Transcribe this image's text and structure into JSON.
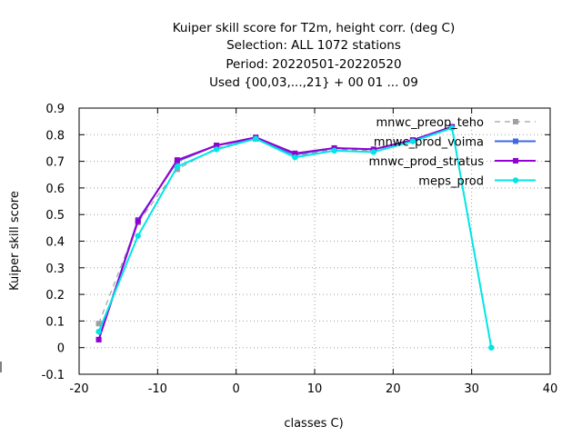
{
  "chart_data": {
    "type": "line",
    "title_lines": [
      "Kuiper skill score  for T2m, height corr. (deg C)",
      "Selection: ALL    1072 stations",
      "Period: 20220501-20220520",
      "Used {00,03,...,21} + 00 01 ... 09"
    ],
    "xlabel": "classes C)",
    "ylabel": "Kuiper skill score",
    "xlim": [
      -20,
      40
    ],
    "ylim": [
      -0.1,
      0.9
    ],
    "x_ticks": [
      -20,
      -10,
      0,
      10,
      20,
      30,
      40
    ],
    "x_tick_labels": [
      "-20",
      "-10",
      "0",
      "10",
      "20",
      "30",
      "40"
    ],
    "y_ticks": [
      -0.1,
      0,
      0.1,
      0.2,
      0.3,
      0.4,
      0.5,
      0.6,
      0.7,
      0.8,
      0.9
    ],
    "y_tick_labels": [
      "-0.1",
      "0",
      "0.1",
      "0.2",
      "0.3",
      "0.4",
      "0.5",
      "0.6",
      "0.7",
      "0.8",
      "0.9"
    ],
    "grid": true,
    "legend_position": "top-right",
    "series": [
      {
        "name": "mnwc_preop_teho",
        "color": "#a0a0a0",
        "dashed": true,
        "x": [
          -17.5,
          -12.5,
          -7.5,
          -2.5,
          2.5,
          7.5,
          12.5,
          17.5,
          22.5,
          27.5
        ],
        "y": [
          0.09,
          0.47,
          0.67,
          0.75,
          0.785,
          0.72,
          0.745,
          0.74,
          0.78,
          0.83
        ]
      },
      {
        "name": "mnwc_prod_voima",
        "color": "#4169e1",
        "dashed": false,
        "x": [
          -17.5,
          -12.5,
          -7.5,
          -2.5,
          2.5,
          7.5,
          12.5,
          17.5,
          22.5,
          27.5
        ],
        "y": [
          0.03,
          0.48,
          0.7,
          0.76,
          0.785,
          0.725,
          0.75,
          0.745,
          0.78,
          0.83
        ]
      },
      {
        "name": "mnwc_prod_stratus",
        "color": "#9400d3",
        "dashed": false,
        "x": [
          -17.5,
          -12.5,
          -7.5,
          -2.5,
          2.5,
          7.5,
          12.5,
          17.5,
          22.5,
          27.5
        ],
        "y": [
          0.03,
          0.475,
          0.705,
          0.76,
          0.79,
          0.73,
          0.75,
          0.745,
          0.78,
          0.83
        ]
      },
      {
        "name": "meps_prod",
        "color": "#00e5e5",
        "dashed": false,
        "x": [
          -17.5,
          -12.5,
          -7.5,
          -2.5,
          2.5,
          7.5,
          12.5,
          17.5,
          22.5,
          27.5,
          32.5
        ],
        "y": [
          0.06,
          0.42,
          0.68,
          0.745,
          0.785,
          0.715,
          0.74,
          0.735,
          0.775,
          0.825,
          0.0
        ]
      }
    ]
  }
}
